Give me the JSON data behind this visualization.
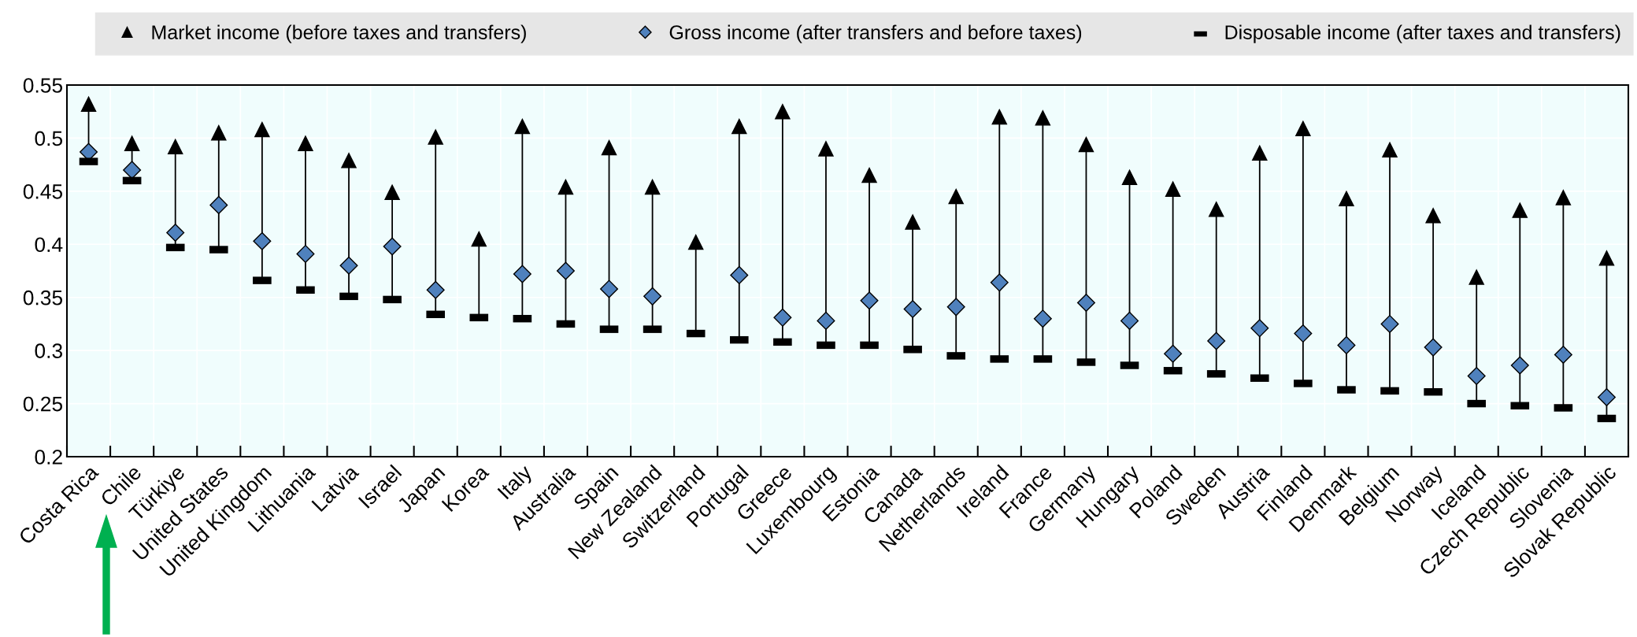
{
  "chart_data": {
    "type": "scatter",
    "categories": [
      "Costa Rica",
      "Chile",
      "Türkiye",
      "United States",
      "United Kingdom",
      "Lithuania",
      "Latvia",
      "Israel",
      "Japan",
      "Korea",
      "Italy",
      "Australia",
      "Spain",
      "New Zealand",
      "Switzerland",
      "Portugal",
      "Greece",
      "Luxembourg",
      "Estonia",
      "Canada",
      "Netherlands",
      "Ireland",
      "France",
      "Germany",
      "Hungary",
      "Poland",
      "Sweden",
      "Austria",
      "Finland",
      "Denmark",
      "Belgium",
      "Norway",
      "Iceland",
      "Czech Republic",
      "Slovenia",
      "Slovak Republic"
    ],
    "series": [
      {
        "name": "Market income (before taxes and transfers)",
        "color": "#000000",
        "marker": "triangle",
        "values": [
          0.532,
          0.495,
          0.492,
          0.505,
          0.508,
          0.495,
          0.479,
          0.449,
          0.501,
          0.405,
          0.511,
          0.454,
          0.491,
          0.454,
          0.402,
          0.511,
          0.525,
          0.49,
          0.465,
          0.421,
          0.445,
          0.52,
          0.519,
          0.494,
          0.463,
          0.452,
          0.433,
          0.486,
          0.509,
          0.443,
          0.489,
          0.427,
          0.369,
          0.432,
          0.444,
          0.387
        ]
      },
      {
        "name": "Gross income (after transfers and before taxes)",
        "color": "#4f81bd",
        "marker": "diamond",
        "values": [
          0.487,
          0.47,
          0.411,
          0.437,
          0.403,
          0.391,
          0.38,
          0.398,
          0.357,
          null,
          0.372,
          0.375,
          0.358,
          0.351,
          null,
          0.371,
          0.331,
          0.328,
          0.347,
          0.339,
          0.341,
          0.364,
          0.33,
          0.345,
          0.328,
          0.297,
          0.309,
          0.321,
          0.316,
          0.305,
          0.325,
          0.303,
          0.276,
          0.286,
          0.296,
          0.256
        ]
      },
      {
        "name": "Disposable income (after taxes and transfers)",
        "color": "#000000",
        "values": [
          0.478,
          0.46,
          0.397,
          0.395,
          0.366,
          0.357,
          0.351,
          0.348,
          0.334,
          0.331,
          0.33,
          0.325,
          0.32,
          0.32,
          0.316,
          0.31,
          0.308,
          0.305,
          0.305,
          0.301,
          0.295,
          0.292,
          0.292,
          0.289,
          0.286,
          0.281,
          0.278,
          0.274,
          0.269,
          0.263,
          0.262,
          0.261,
          0.25,
          0.248,
          0.246,
          0.236
        ]
      }
    ],
    "ylim": [
      0.2,
      0.55
    ],
    "yticks": [
      0.2,
      0.25,
      0.3,
      0.35,
      0.4,
      0.45,
      0.5,
      0.55
    ],
    "grid": true,
    "legend": "top"
  }
}
